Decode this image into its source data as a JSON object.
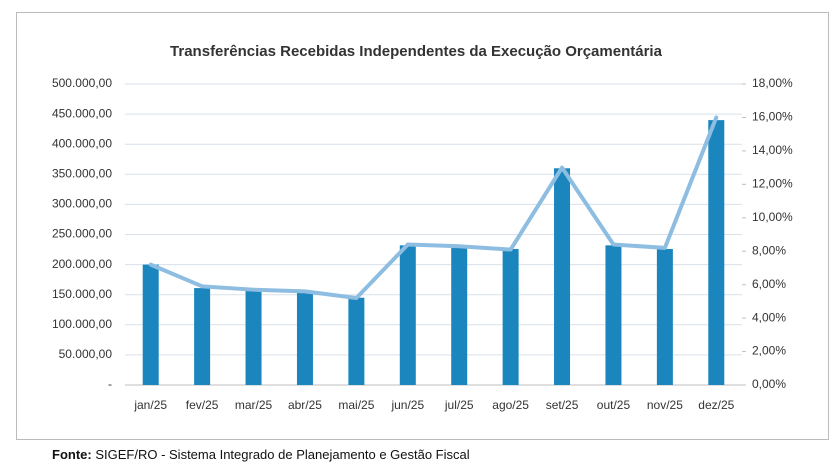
{
  "chart_data": {
    "type": "bar_line",
    "title": "Transferências Recebidas Independentes da Execução Orçamentária",
    "categories": [
      "jan/25",
      "fev/25",
      "mar/25",
      "abr/25",
      "mai/25",
      "jun/25",
      "jul/25",
      "ago/25",
      "set/25",
      "out/25",
      "nov/25",
      "dez/25"
    ],
    "series": [
      {
        "type": "bar",
        "color": "#1a86bd",
        "values": [
          200000,
          161000,
          158000,
          155000,
          145000,
          232000,
          229000,
          226000,
          360000,
          232000,
          226000,
          440000
        ]
      },
      {
        "type": "line",
        "axis": "y2",
        "color": "#8ebde2",
        "values": [
          7.2,
          5.9,
          5.7,
          5.6,
          5.2,
          8.4,
          8.3,
          8.1,
          13.0,
          8.4,
          8.2,
          16.0
        ]
      }
    ],
    "ylim": [
      0,
      500000
    ],
    "yticks": [
      {
        "value": 0,
        "label": "-"
      },
      {
        "value": 50000,
        "label": "50.000,00"
      },
      {
        "value": 100000,
        "label": "100.000,00"
      },
      {
        "value": 150000,
        "label": "150.000,00"
      },
      {
        "value": 200000,
        "label": "200.000,00"
      },
      {
        "value": 250000,
        "label": "250.000,00"
      },
      {
        "value": 300000,
        "label": "300.000,00"
      },
      {
        "value": 350000,
        "label": "350.000,00"
      },
      {
        "value": 400000,
        "label": "400.000,00"
      },
      {
        "value": 450000,
        "label": "450.000,00"
      },
      {
        "value": 500000,
        "label": "500.000,00"
      }
    ],
    "y2lim": [
      0,
      18
    ],
    "y2ticks": [
      {
        "value": 0,
        "label": "0,00%"
      },
      {
        "value": 2,
        "label": "2,00%"
      },
      {
        "value": 4,
        "label": "4,00%"
      },
      {
        "value": 6,
        "label": "6,00%"
      },
      {
        "value": 8,
        "label": "8,00%"
      },
      {
        "value": 10,
        "label": "10,00%"
      },
      {
        "value": 12,
        "label": "12,00%"
      },
      {
        "value": 14,
        "label": "14,00%"
      },
      {
        "value": 16,
        "label": "16,00%"
      },
      {
        "value": 18,
        "label": "18,00%"
      }
    ],
    "grid": true
  },
  "footer": {
    "source_label": "Fonte:",
    "source": "SIGEF/RO - Sistema Integrado de Planejamento e Gestão Fiscal"
  }
}
